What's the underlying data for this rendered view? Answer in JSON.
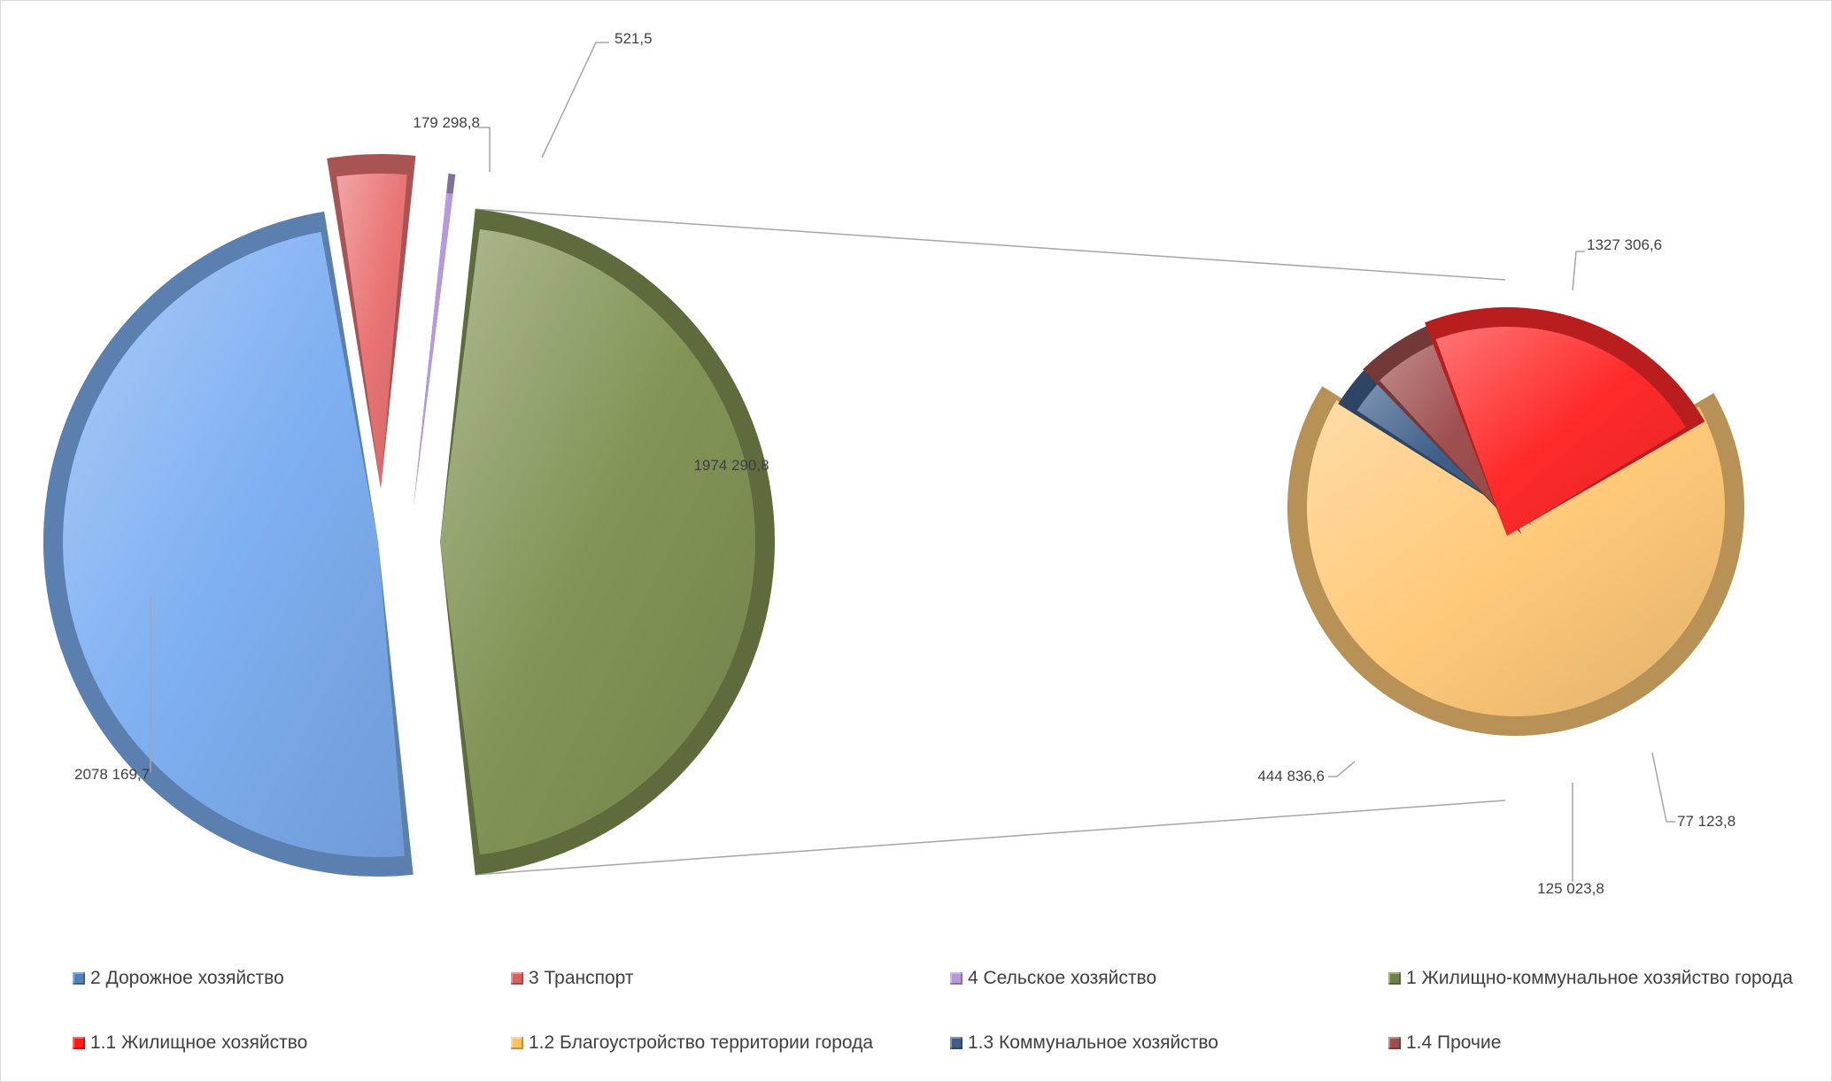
{
  "chart_data": {
    "type": "pie",
    "subtype": "pie-of-pie",
    "title": "",
    "primary": {
      "slices": [
        {
          "category": "2 Дорожное хозяйство",
          "value": 2078169.7,
          "label": "2078 169,7",
          "color": "#7fb0f2"
        },
        {
          "category": "3 Транспорт",
          "value": 179298.8,
          "label": "179 298,8",
          "color": "#ea7474"
        },
        {
          "category": "4 Сельское хозяйство",
          "value": 521.5,
          "label": "521,5",
          "color": "#b497dd"
        },
        {
          "category": "1 Жилищно-коммунальное  хозяйство города",
          "value": 1974290.8,
          "label": "1974 290,8",
          "color": "#819455"
        }
      ]
    },
    "secondary": {
      "of_category": "1 Жилищно-коммунальное  хозяйство города",
      "slices": [
        {
          "category": "1.2 Благоустройство территории города",
          "value": 1327306.6,
          "label": "1327 306,6",
          "color": "#ffc979"
        },
        {
          "category": "1.3 Коммунальное хозяйство",
          "value": 77123.8,
          "label": "77 123,8",
          "color": "#3e5f8a"
        },
        {
          "category": "1.4 Прочие",
          "value": 125023.8,
          "label": "125 023,8",
          "color": "#a04f4f"
        },
        {
          "category": "1.1 Жилищное хозяйство",
          "value": 444836.6,
          "label": "444 836,6",
          "color": "#ff2a2a"
        }
      ]
    },
    "legend": {
      "position": "bottom",
      "items": [
        {
          "label": "2 Дорожное хозяйство",
          "color": "#4f81bd"
        },
        {
          "label": "3 Транспорт",
          "color": "#d9605e"
        },
        {
          "label": "4 Сельское хозяйство",
          "color": "#b497dd"
        },
        {
          "label": "1 Жилищно-коммунальное  хозяйство города",
          "color": "#6e8447"
        },
        {
          "label": "1.1 Жилищное хозяйство",
          "color": "#ff1a1a"
        },
        {
          "label": "1.2 Благоустройство территории города",
          "color": "#ffc060"
        },
        {
          "label": "1.3 Коммунальное хозяйство",
          "color": "#3e5f8a"
        },
        {
          "label": "1.4 Прочие",
          "color": "#a04f4f"
        }
      ]
    }
  }
}
